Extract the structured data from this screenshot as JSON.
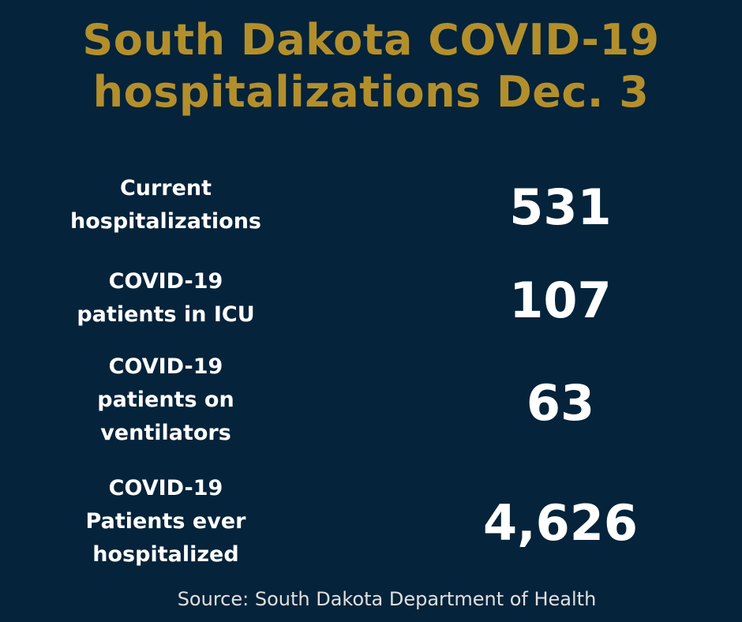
{
  "title": {
    "line1": "South Dakota COVID-19",
    "line2": "hospitalizations Dec. 3"
  },
  "stats": [
    {
      "label_lines": [
        "Current",
        "hospitalizations"
      ],
      "value": "531"
    },
    {
      "label_lines": [
        "COVID-19",
        "patients in ICU"
      ],
      "value": "107"
    },
    {
      "label_lines": [
        "COVID-19",
        "patients on",
        "ventilators"
      ],
      "value": "63"
    },
    {
      "label_lines": [
        "COVID-19",
        "Patients ever",
        "hospitalized"
      ],
      "value": "4,626"
    }
  ],
  "source": "Source: South Dakota Department of Health",
  "colors": {
    "background": "#05233a",
    "title": "#b38f2c",
    "text": "#ffffff"
  }
}
